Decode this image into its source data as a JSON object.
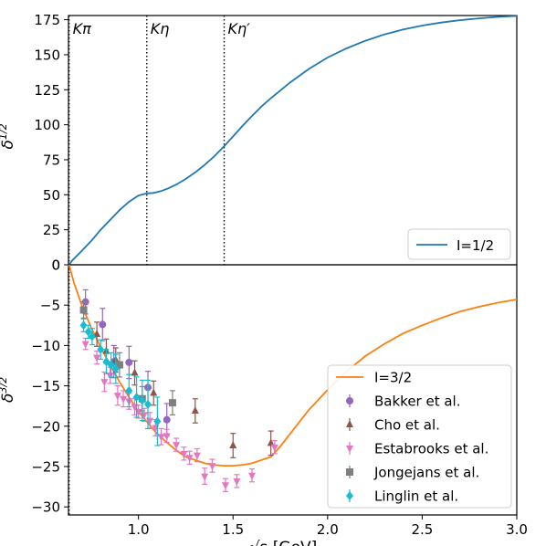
{
  "chart_data": [
    {
      "type": "line",
      "xlabel": "",
      "ylabel": "δ0^1/2",
      "xlim": [
        0.63,
        3.0
      ],
      "ylim": [
        0,
        178
      ],
      "yticks": [
        "0",
        "25",
        "50",
        "75",
        "100",
        "125",
        "150",
        "175"
      ],
      "thresholds": [
        {
          "label": "Kπ",
          "x": 0.633
        },
        {
          "label": "Kη",
          "x": 1.044
        },
        {
          "label": "Kη′",
          "x": 1.453
        }
      ],
      "legend": {
        "placement": "lower-right",
        "entries": [
          "I=1/2"
        ]
      },
      "series": [
        {
          "name": "I=1/2",
          "color": "#1f77b4",
          "x": [
            0.633,
            0.65,
            0.7,
            0.75,
            0.8,
            0.85,
            0.9,
            0.95,
            1.0,
            1.044,
            1.08,
            1.12,
            1.16,
            1.2,
            1.25,
            1.3,
            1.35,
            1.4,
            1.453,
            1.5,
            1.55,
            1.6,
            1.65,
            1.7,
            1.8,
            1.9,
            2.0,
            2.1,
            2.2,
            2.3,
            2.4,
            2.5,
            2.6,
            2.7,
            2.8,
            2.9,
            3.0
          ],
          "values": [
            0,
            3,
            10,
            17,
            25,
            32,
            39,
            45,
            49.5,
            51,
            51.3,
            52.6,
            54.7,
            57.3,
            61.3,
            66,
            71.3,
            77.3,
            84.7,
            91.6,
            99.2,
            106.3,
            113,
            119,
            130,
            139.8,
            148,
            154.5,
            160,
            164.5,
            168,
            170.8,
            173,
            174.7,
            176,
            177,
            177.7
          ]
        }
      ]
    },
    {
      "type": "scatter",
      "xlabel": "√s [GeV]",
      "ylabel": "δ0^3/2",
      "xlim": [
        0.63,
        3.0
      ],
      "ylim": [
        -31,
        0
      ],
      "xticks": [
        "1.0",
        "1.5",
        "2.0",
        "2.5",
        "3.0"
      ],
      "yticks": [
        "0",
        "−5",
        "−10",
        "−15",
        "−20",
        "−25",
        "−30"
      ],
      "legend": {
        "placement": "lower-right",
        "entries": [
          "I=3/2",
          "Bakker et al.",
          "Cho et al.",
          "Estabrooks et al.",
          "Jongejans et al.",
          "Linglin et al."
        ]
      },
      "series": [
        {
          "name": "I=3/2",
          "kind": "line",
          "color": "#ff7f0e",
          "x": [
            0.633,
            0.66,
            0.7,
            0.75,
            0.8,
            0.85,
            0.9,
            0.95,
            1.0,
            1.05,
            1.1,
            1.15,
            1.2,
            1.25,
            1.3,
            1.35,
            1.4,
            1.45,
            1.5,
            1.55,
            1.6,
            1.65,
            1.7,
            1.75,
            1.8,
            1.9,
            2.0,
            2.1,
            2.2,
            2.3,
            2.4,
            2.5,
            2.6,
            2.7,
            2.8,
            2.9,
            3.0
          ],
          "values": [
            0,
            -2.3,
            -5,
            -7.8,
            -10.2,
            -12.4,
            -14.5,
            -16.4,
            -18.2,
            -19.6,
            -21,
            -22,
            -23,
            -23.8,
            -24.2,
            -24.6,
            -24.8,
            -24.9,
            -24.9,
            -24.8,
            -24.6,
            -24.2,
            -23.8,
            -22.5,
            -21,
            -18,
            -15.5,
            -13.2,
            -11.3,
            -9.8,
            -8.5,
            -7.5,
            -6.6,
            -5.8,
            -5.2,
            -4.7,
            -4.3
          ]
        },
        {
          "name": "Bakker et al.",
          "kind": "points",
          "marker": "circle",
          "color": "#9467bd",
          "x": [
            0.72,
            0.81,
            0.87,
            0.95,
            1.05,
            1.15
          ],
          "values": [
            -4.6,
            -7.4,
            -12,
            -12.1,
            -15.2,
            -19.2
          ],
          "errors": [
            1.5,
            2,
            2,
            2,
            2,
            2
          ]
        },
        {
          "name": "Cho et al.",
          "kind": "points",
          "marker": "triangle-up",
          "color": "#8c564b",
          "x": [
            0.78,
            0.83,
            0.88,
            0.98,
            1.08,
            1.3,
            1.5,
            1.7
          ],
          "values": [
            -8.6,
            -10.7,
            -11.8,
            -13.4,
            -15.9,
            -18.1,
            -22.4,
            -22.1
          ],
          "errors": [
            1.5,
            1.5,
            1.5,
            1.5,
            1.5,
            1.5,
            1.5,
            1.5
          ]
        },
        {
          "name": "Estabrooks et al.",
          "kind": "points",
          "marker": "triangle-down",
          "color": "#e377c2",
          "x": [
            0.72,
            0.78,
            0.82,
            0.85,
            0.89,
            0.92,
            0.95,
            0.98,
            1.0,
            1.03,
            1.06,
            1.09,
            1.12,
            1.15,
            1.2,
            1.24,
            1.27,
            1.31,
            1.35,
            1.39,
            1.46,
            1.52,
            1.6,
            1.72
          ],
          "values": [
            -9.8,
            -11.5,
            -14.5,
            -13.7,
            -16.2,
            -16.6,
            -16.9,
            -17.6,
            -18.2,
            -18.6,
            -19.3,
            -20.2,
            -21.3,
            -21.2,
            -22.3,
            -23.4,
            -23.9,
            -23.6,
            -26.2,
            -24.9,
            -27.3,
            -26.8,
            -26.1,
            -22.6
          ],
          "errors": [
            0.7,
            0.8,
            1.2,
            1,
            1.2,
            1,
            1,
            1,
            0.8,
            0.8,
            1,
            1,
            1,
            0.8,
            0.8,
            0.8,
            0.8,
            0.8,
            1,
            0.8,
            0.8,
            0.8,
            0.8,
            0.8
          ]
        },
        {
          "name": "Jongejans et al.",
          "kind": "points",
          "marker": "square",
          "color": "#7f7f7f",
          "x": [
            0.71,
            0.9,
            1.02,
            1.18
          ],
          "values": [
            -5.6,
            -12.4,
            -16.6,
            -17.1
          ],
          "errors": [
            1,
            1.5,
            1.5,
            1.5
          ]
        },
        {
          "name": "Linglin et al.",
          "kind": "points",
          "marker": "diamond",
          "color": "#17becf",
          "x": [
            0.71,
            0.735,
            0.755,
            0.8,
            0.83,
            0.855,
            0.88,
            0.95,
            0.99,
            1.02,
            1.05,
            1.1
          ],
          "values": [
            -7.5,
            -8.3,
            -8.9,
            -10.5,
            -12,
            -12.4,
            -12.9,
            -15.6,
            -16.4,
            -16.8,
            -17.3,
            -19.4
          ],
          "errors": [
            0.8,
            0.8,
            1,
            1.2,
            1.5,
            1.5,
            1.8,
            2,
            2.5,
            2.5,
            3,
            3
          ]
        }
      ]
    }
  ]
}
